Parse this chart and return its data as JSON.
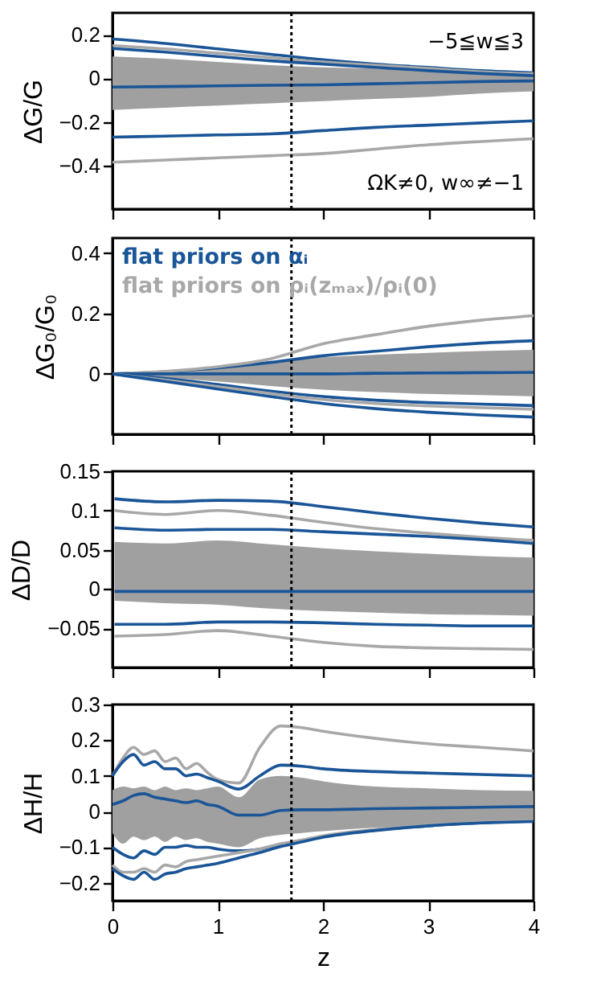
{
  "chart_data": [
    {
      "type": "line",
      "ylabel": "ΔG/G",
      "xlim": [
        0,
        4
      ],
      "xticks": [
        0,
        1,
        2,
        3,
        4
      ],
      "ylim": [
        -0.6,
        0.3
      ],
      "yticks": [
        -0.4,
        -0.2,
        0,
        0.2
      ],
      "tick_labels": "y",
      "grid": false,
      "x": [
        0,
        0.5,
        1,
        1.5,
        2,
        2.5,
        3,
        3.5,
        4
      ],
      "series": [
        {
          "color": "#1a5597",
          "values": [
            0.18,
            0.16,
            0.135,
            0.11,
            0.085,
            0.065,
            0.05,
            0.035,
            0.025
          ]
        },
        {
          "color": "#a8a8a8",
          "values": [
            0.15,
            0.135,
            0.115,
            0.095,
            0.075,
            0.06,
            0.045,
            0.03,
            0.02
          ]
        },
        {
          "color": "#1a5597",
          "values": [
            0.137,
            0.12,
            0.1,
            0.08,
            0.065,
            0.05,
            0.035,
            0.022,
            0.012
          ]
        },
        {
          "color": "#1a5597",
          "values": [
            -0.04,
            -0.038,
            -0.035,
            -0.032,
            -0.03,
            -0.025,
            -0.02,
            -0.015,
            -0.012
          ],
          "lower": [
            -0.145,
            -0.135,
            -0.125,
            -0.115,
            -0.105,
            -0.095,
            -0.085,
            -0.07,
            -0.06
          ],
          "upper": [
            0.1,
            0.09,
            0.075,
            0.06,
            0.05,
            0.045,
            0.04,
            0.035,
            0.03
          ]
        },
        {
          "color": "#1a5597",
          "values": [
            -0.27,
            -0.265,
            -0.26,
            -0.255,
            -0.24,
            -0.225,
            -0.215,
            -0.205,
            -0.195
          ]
        },
        {
          "color": "#a8a8a8",
          "values": [
            -0.385,
            -0.375,
            -0.365,
            -0.355,
            -0.345,
            -0.325,
            -0.305,
            -0.29,
            -0.277
          ]
        }
      ],
      "ref_lines": [
        {
          "axis": "x",
          "value": 1.7,
          "line_style": "dotted"
        }
      ],
      "annotations": [
        "−5≦w≦3",
        "ΩK≠0,  w∞≠−1"
      ]
    },
    {
      "type": "line",
      "ylabel": "ΔG₀/G₀",
      "xlim": [
        0,
        4
      ],
      "xticks": [
        0,
        1,
        2,
        3,
        4
      ],
      "ylim": [
        -0.2,
        0.45
      ],
      "yticks": [
        0,
        0.2,
        0.4
      ],
      "tick_labels": "y",
      "grid": false,
      "legend": "top left",
      "x": [
        0,
        0.5,
        1,
        1.5,
        2,
        2.5,
        3,
        3.5,
        4
      ],
      "series": [
        {
          "name": "flat priors on αᵢ",
          "color": "#1a5597",
          "values": [
            0,
            0.007,
            0.02,
            0.038,
            0.06,
            0.075,
            0.09,
            0.102,
            0.11
          ]
        },
        {
          "name": "flat priors on ρᵢ(zₘₐₓ)/ρᵢ(0)",
          "color": "#a8a8a8",
          "values": [
            0,
            0.008,
            0.024,
            0.05,
            0.1,
            0.13,
            0.158,
            0.178,
            0.193
          ]
        },
        {
          "color": "#1a5597",
          "values": [
            0,
            0,
            0,
            0,
            0,
            0.002,
            0.003,
            0.004,
            0.005
          ],
          "lower": [
            0,
            -0.012,
            -0.025,
            -0.04,
            -0.052,
            -0.06,
            -0.066,
            -0.07,
            -0.074
          ],
          "upper": [
            0,
            0.01,
            0.024,
            0.042,
            0.055,
            0.064,
            0.07,
            0.076,
            0.08
          ]
        },
        {
          "color": "#1a5597",
          "values": [
            0,
            -0.015,
            -0.035,
            -0.057,
            -0.075,
            -0.087,
            -0.095,
            -0.1,
            -0.105
          ]
        },
        {
          "color": "#a8a8a8",
          "values": [
            0,
            -0.02,
            -0.042,
            -0.065,
            -0.085,
            -0.098,
            -0.106,
            -0.112,
            -0.117
          ]
        },
        {
          "color": "#1a5597",
          "values": [
            0,
            -0.025,
            -0.05,
            -0.075,
            -0.098,
            -0.115,
            -0.127,
            -0.136,
            -0.143
          ]
        }
      ],
      "ref_lines": [
        {
          "axis": "x",
          "value": 1.7,
          "line_style": "dotted"
        }
      ]
    },
    {
      "type": "line",
      "ylabel": "ΔD/D",
      "xlim": [
        0,
        4
      ],
      "xticks": [
        0,
        1,
        2,
        3,
        4
      ],
      "ylim": [
        -0.1,
        0.15
      ],
      "yticks": [
        -0.05,
        0,
        0.05,
        0.1,
        0.15
      ],
      "tick_labels": "y",
      "grid": false,
      "x": [
        0.02,
        0.5,
        1,
        1.5,
        2,
        2.5,
        3,
        3.5,
        4
      ],
      "series": [
        {
          "color": "#1a5597",
          "values": [
            0.115,
            0.111,
            0.113,
            0.112,
            0.105,
            0.097,
            0.09,
            0.084,
            0.079
          ]
        },
        {
          "color": "#a8a8a8",
          "values": [
            0.1,
            0.095,
            0.1,
            0.094,
            0.085,
            0.077,
            0.071,
            0.066,
            0.062
          ]
        },
        {
          "color": "#1a5597",
          "values": [
            0.078,
            0.075,
            0.076,
            0.076,
            0.073,
            0.07,
            0.067,
            0.063,
            0.058
          ]
        },
        {
          "color": "#1a5597",
          "values": [
            -0.003,
            -0.003,
            -0.003,
            -0.003,
            -0.003,
            -0.003,
            -0.003,
            -0.003,
            -0.003
          ],
          "lower": [
            -0.015,
            -0.018,
            -0.02,
            -0.025,
            -0.028,
            -0.03,
            -0.032,
            -0.033,
            -0.034
          ],
          "upper": [
            0.06,
            0.058,
            0.062,
            0.057,
            0.052,
            0.048,
            0.045,
            0.042,
            0.04
          ]
        },
        {
          "color": "#1a5597",
          "values": [
            -0.045,
            -0.045,
            -0.042,
            -0.042,
            -0.043,
            -0.045,
            -0.046,
            -0.047,
            -0.047
          ]
        },
        {
          "color": "#a8a8a8",
          "values": [
            -0.06,
            -0.058,
            -0.053,
            -0.06,
            -0.068,
            -0.073,
            -0.075,
            -0.076,
            -0.077
          ]
        }
      ],
      "ref_lines": [
        {
          "axis": "x",
          "value": 1.7,
          "line_style": "dotted"
        }
      ]
    },
    {
      "type": "line",
      "ylabel": "ΔH/H",
      "xlabel": "z",
      "xlim": [
        0,
        4
      ],
      "xticks": [
        0,
        1,
        2,
        3,
        4
      ],
      "ylim": [
        -0.25,
        0.3
      ],
      "yticks": [
        -0.2,
        -0.1,
        0,
        0.1,
        0.2,
        0.3
      ],
      "grid": false,
      "x": [
        0,
        0.1,
        0.2,
        0.3,
        0.4,
        0.5,
        0.6,
        0.7,
        0.8,
        0.9,
        1,
        1.2,
        1.4,
        1.6,
        1.8,
        2,
        2.5,
        3,
        3.5,
        4
      ],
      "series": [
        {
          "color": "#a8a8a8",
          "values": [
            0.1,
            0.15,
            0.18,
            0.16,
            0.17,
            0.14,
            0.15,
            0.12,
            0.135,
            0.11,
            0.09,
            0.08,
            0.18,
            0.24,
            0.235,
            0.225,
            0.205,
            0.19,
            0.18,
            0.17
          ]
        },
        {
          "color": "#1a5597",
          "values": [
            0.1,
            0.14,
            0.16,
            0.13,
            0.14,
            0.12,
            0.12,
            0.1,
            0.105,
            0.095,
            0.085,
            0.063,
            0.1,
            0.13,
            0.127,
            0.12,
            0.112,
            0.108,
            0.104,
            0.1
          ]
        },
        {
          "color": "#1a5597",
          "values": [
            0.02,
            0.03,
            0.045,
            0.05,
            0.04,
            0.035,
            0.03,
            0.025,
            0.03,
            0.02,
            0.015,
            -0.01,
            -0.01,
            0.003,
            0.005,
            0.005,
            0.008,
            0.01,
            0.012,
            0.014
          ],
          "lower": [
            -0.06,
            -0.09,
            -0.07,
            -0.08,
            -0.07,
            -0.085,
            -0.07,
            -0.08,
            -0.075,
            -0.085,
            -0.09,
            -0.1,
            -0.075,
            -0.065,
            -0.06,
            -0.055,
            -0.045,
            -0.04,
            -0.035,
            -0.03
          ],
          "upper": [
            0.06,
            0.07,
            0.065,
            0.07,
            0.06,
            0.07,
            0.06,
            0.065,
            0.06,
            0.065,
            0.07,
            0.04,
            0.09,
            0.1,
            0.095,
            0.085,
            0.07,
            0.065,
            0.06,
            0.058
          ]
        },
        {
          "color": "#1a5597",
          "values": [
            -0.1,
            -0.12,
            -0.13,
            -0.11,
            -0.12,
            -0.1,
            -0.1,
            -0.095,
            -0.1,
            -0.1,
            -0.105,
            -0.11,
            -0.105,
            -0.092,
            -0.083,
            -0.07,
            -0.052,
            -0.04,
            -0.032,
            -0.027
          ]
        },
        {
          "color": "#a8a8a8",
          "values": [
            -0.15,
            -0.17,
            -0.17,
            -0.16,
            -0.17,
            -0.15,
            -0.155,
            -0.14,
            -0.135,
            -0.13,
            -0.125,
            -0.115,
            -0.105,
            -0.09,
            -0.08,
            -0.068,
            -0.05,
            -0.038,
            -0.03,
            -0.025
          ]
        },
        {
          "color": "#1a5597",
          "values": [
            -0.16,
            -0.18,
            -0.19,
            -0.17,
            -0.19,
            -0.175,
            -0.17,
            -0.16,
            -0.155,
            -0.15,
            -0.145,
            -0.13,
            -0.115,
            -0.098,
            -0.085,
            -0.072,
            -0.053,
            -0.04,
            -0.032,
            -0.028
          ]
        }
      ],
      "ref_lines": [
        {
          "axis": "x",
          "value": 1.7,
          "line_style": "dotted"
        }
      ]
    }
  ]
}
